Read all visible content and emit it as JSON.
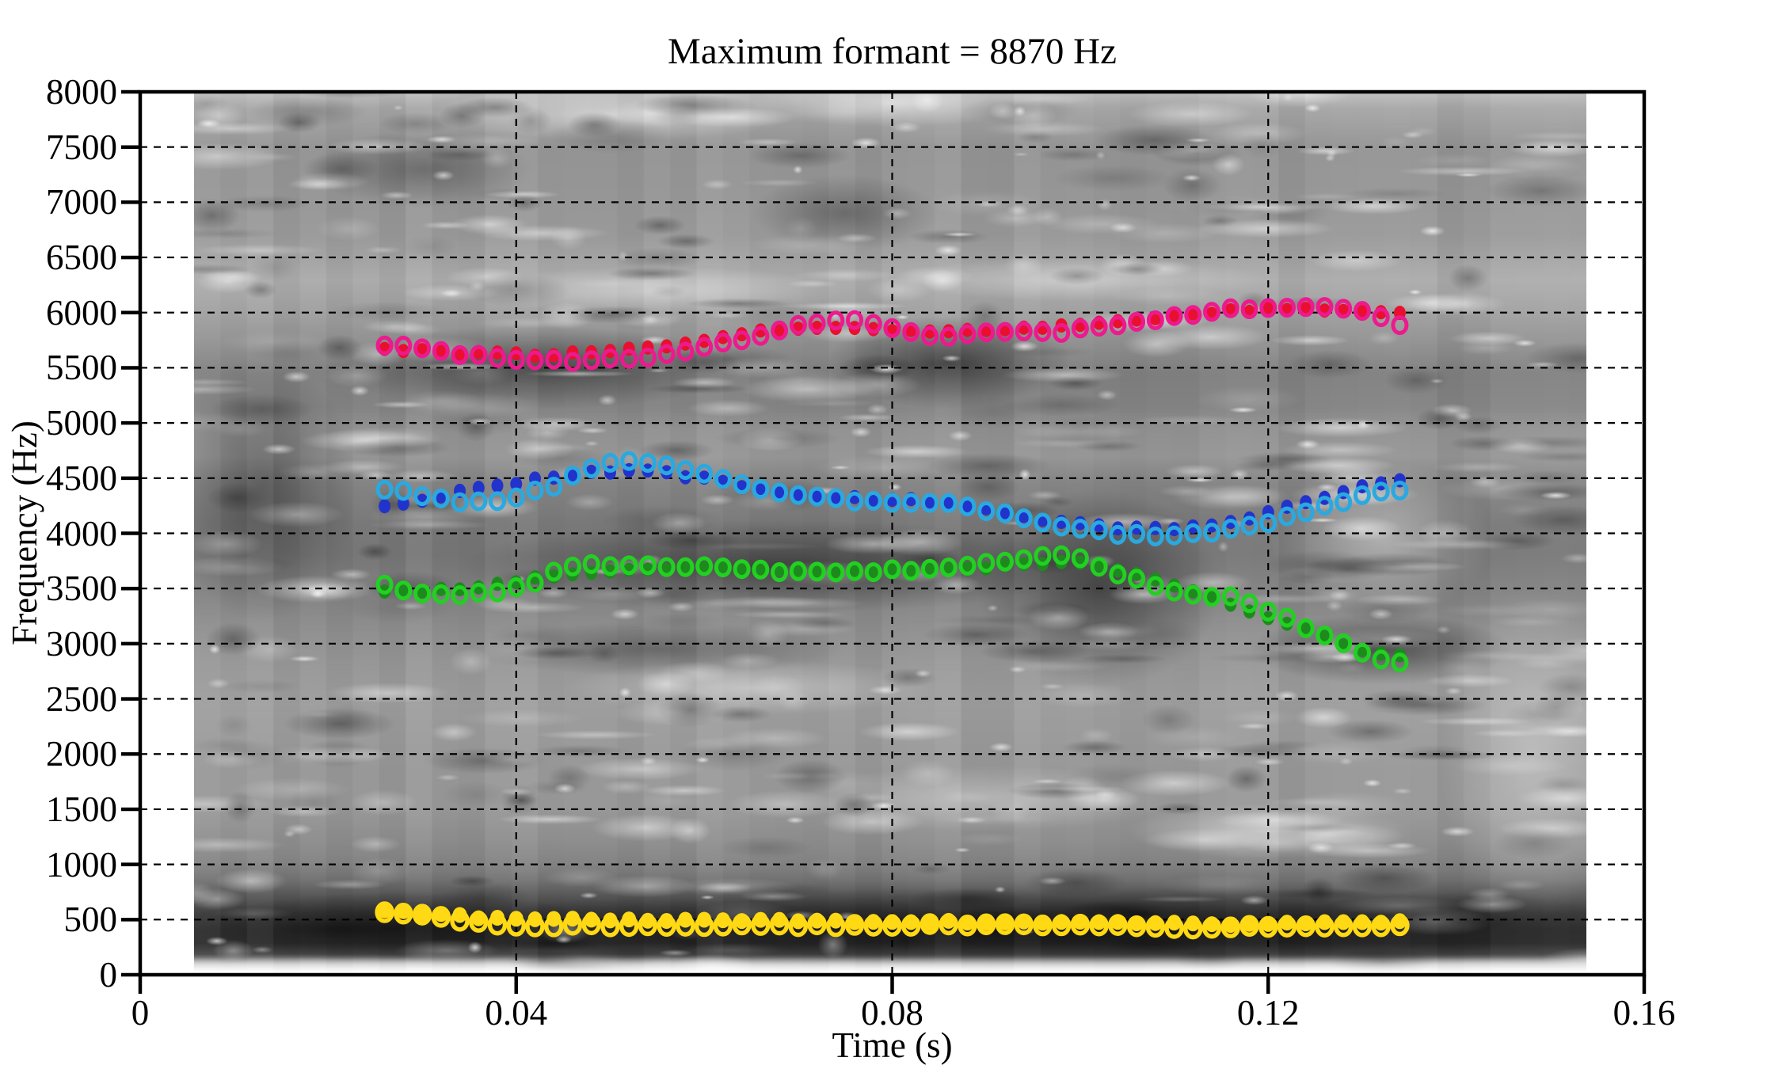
{
  "title": "Maximum formant = 8870 Hz",
  "chart_data": {
    "type": "scatter",
    "title": "Maximum formant = 8870 Hz",
    "xlabel": "Time (s)",
    "ylabel": "Frequency (Hz)",
    "xlim": [
      0,
      0.16
    ],
    "ylim": [
      0,
      8000
    ],
    "x_ticks": [
      0,
      0.04,
      0.08,
      0.12,
      0.16
    ],
    "x_tick_labels": [
      "0",
      "0.04",
      "0.08",
      "0.12",
      "0.16"
    ],
    "y_ticks": [
      0,
      500,
      1000,
      1500,
      2000,
      2500,
      3000,
      3500,
      4000,
      4500,
      5000,
      5500,
      6000,
      6500,
      7000,
      7500,
      8000
    ],
    "y_tick_labels": [
      "0",
      "500",
      "1000",
      "1500",
      "2000",
      "2500",
      "3000",
      "3500",
      "4000",
      "4500",
      "5000",
      "5500",
      "6000",
      "6500",
      "7000",
      "7500",
      "8000"
    ],
    "grid": {
      "style": "dashed",
      "h_step_hz": 500,
      "v_step_s": 0.04,
      "color": "#000000"
    },
    "legend": "none",
    "background": {
      "kind": "grayscale-spectrogram",
      "time_range_s": [
        0.0057,
        0.1539
      ],
      "freq_range_hz": [
        0,
        8000
      ]
    },
    "formant_tracks": {
      "time_start_s": 0.026,
      "time_step_s": 0.002,
      "time_end_s": 0.134,
      "series": [
        {
          "id": "red-filled-dots",
          "label": "Formant ~5600-6000 Hz (filled dots)",
          "marker": "filled-dot",
          "color": "#e8102e",
          "keypoints": [
            [
              0.026,
              5672
            ],
            [
              0.03,
              5655
            ],
            [
              0.034,
              5640
            ],
            [
              0.038,
              5628
            ],
            [
              0.042,
              5620
            ],
            [
              0.046,
              5628
            ],
            [
              0.05,
              5652
            ],
            [
              0.056,
              5705
            ],
            [
              0.062,
              5780
            ],
            [
              0.068,
              5845
            ],
            [
              0.072,
              5868
            ],
            [
              0.076,
              5868
            ],
            [
              0.08,
              5845
            ],
            [
              0.084,
              5828
            ],
            [
              0.088,
              5840
            ],
            [
              0.092,
              5855
            ],
            [
              0.096,
              5868
            ],
            [
              0.1,
              5890
            ],
            [
              0.104,
              5920
            ],
            [
              0.108,
              5958
            ],
            [
              0.112,
              5990
            ],
            [
              0.116,
              6010
            ],
            [
              0.12,
              6020
            ],
            [
              0.124,
              6025
            ],
            [
              0.128,
              6018
            ],
            [
              0.131,
              6005
            ],
            [
              0.134,
              5988
            ]
          ]
        },
        {
          "id": "magenta-open-circles",
          "label": "Formant ~5600-6050 Hz (open circles)",
          "marker": "open-circle",
          "color": "#ec1a8e",
          "keypoints": [
            [
              0.026,
              5712
            ],
            [
              0.03,
              5668
            ],
            [
              0.034,
              5625
            ],
            [
              0.038,
              5590
            ],
            [
              0.042,
              5568
            ],
            [
              0.046,
              5560
            ],
            [
              0.05,
              5572
            ],
            [
              0.056,
              5625
            ],
            [
              0.062,
              5725
            ],
            [
              0.068,
              5838
            ],
            [
              0.072,
              5912
            ],
            [
              0.076,
              5925
            ],
            [
              0.08,
              5868
            ],
            [
              0.084,
              5795
            ],
            [
              0.088,
              5802
            ],
            [
              0.092,
              5830
            ],
            [
              0.096,
              5812
            ],
            [
              0.1,
              5850
            ],
            [
              0.104,
              5882
            ],
            [
              0.108,
              5940
            ],
            [
              0.112,
              5978
            ],
            [
              0.116,
              6028
            ],
            [
              0.12,
              6050
            ],
            [
              0.124,
              6058
            ],
            [
              0.128,
              6035
            ],
            [
              0.131,
              5985
            ],
            [
              0.134,
              5892
            ]
          ]
        },
        {
          "id": "blue-filled-dots",
          "label": "Formant ~4050-4560 Hz (filled dots)",
          "marker": "filled-dot",
          "color": "#2233cc",
          "keypoints": [
            [
              0.026,
              4258
            ],
            [
              0.03,
              4300
            ],
            [
              0.034,
              4378
            ],
            [
              0.038,
              4432
            ],
            [
              0.044,
              4512
            ],
            [
              0.048,
              4545
            ],
            [
              0.053,
              4560
            ],
            [
              0.058,
              4520
            ],
            [
              0.063,
              4442
            ],
            [
              0.068,
              4372
            ],
            [
              0.073,
              4330
            ],
            [
              0.078,
              4318
            ],
            [
              0.083,
              4298
            ],
            [
              0.088,
              4250
            ],
            [
              0.093,
              4180
            ],
            [
              0.098,
              4102
            ],
            [
              0.103,
              4058
            ],
            [
              0.108,
              4040
            ],
            [
              0.113,
              4062
            ],
            [
              0.118,
              4140
            ],
            [
              0.123,
              4252
            ],
            [
              0.128,
              4372
            ],
            [
              0.131,
              4432
            ],
            [
              0.134,
              4472
            ]
          ]
        },
        {
          "id": "cyan-open-circles",
          "label": "Formant ~3980-4650 Hz (open circles)",
          "marker": "open-circle",
          "color": "#29a9e0",
          "keypoints": [
            [
              0.026,
              4408
            ],
            [
              0.03,
              4338
            ],
            [
              0.034,
              4288
            ],
            [
              0.038,
              4298
            ],
            [
              0.044,
              4432
            ],
            [
              0.048,
              4598
            ],
            [
              0.051,
              4648
            ],
            [
              0.055,
              4638
            ],
            [
              0.06,
              4540
            ],
            [
              0.065,
              4428
            ],
            [
              0.07,
              4352
            ],
            [
              0.075,
              4300
            ],
            [
              0.08,
              4288
            ],
            [
              0.085,
              4278
            ],
            [
              0.09,
              4210
            ],
            [
              0.095,
              4120
            ],
            [
              0.1,
              4042
            ],
            [
              0.105,
              3990
            ],
            [
              0.11,
              3978
            ],
            [
              0.115,
              4018
            ],
            [
              0.12,
              4098
            ],
            [
              0.125,
              4220
            ],
            [
              0.13,
              4338
            ],
            [
              0.134,
              4398
            ]
          ]
        },
        {
          "id": "darkgreen-filled-dots",
          "label": "Formant ~2900-3750 Hz (filled dots)",
          "marker": "filled-dot",
          "color": "#1e8a1e",
          "keypoints": [
            [
              0.026,
              3478
            ],
            [
              0.03,
              3482
            ],
            [
              0.034,
              3497
            ],
            [
              0.04,
              3568
            ],
            [
              0.046,
              3640
            ],
            [
              0.052,
              3668
            ],
            [
              0.058,
              3680
            ],
            [
              0.064,
              3674
            ],
            [
              0.072,
              3660
            ],
            [
              0.08,
              3655
            ],
            [
              0.088,
              3680
            ],
            [
              0.096,
              3732
            ],
            [
              0.1,
              3745
            ],
            [
              0.104,
              3660
            ],
            [
              0.108,
              3578
            ],
            [
              0.112,
              3482
            ],
            [
              0.116,
              3360
            ],
            [
              0.12,
              3240
            ],
            [
              0.124,
              3120
            ],
            [
              0.128,
              2992
            ],
            [
              0.131,
              2925
            ],
            [
              0.134,
              2895
            ]
          ]
        },
        {
          "id": "green-open-circles",
          "label": "Formant ~2820-3790 Hz (open circles)",
          "marker": "open-circle",
          "color": "#22d022",
          "keypoints": [
            [
              0.026,
              3540
            ],
            [
              0.03,
              3448
            ],
            [
              0.034,
              3448
            ],
            [
              0.04,
              3505
            ],
            [
              0.046,
              3698
            ],
            [
              0.052,
              3710
            ],
            [
              0.058,
              3700
            ],
            [
              0.064,
              3672
            ],
            [
              0.072,
              3650
            ],
            [
              0.08,
              3662
            ],
            [
              0.088,
              3702
            ],
            [
              0.096,
              3788
            ],
            [
              0.1,
              3768
            ],
            [
              0.104,
              3638
            ],
            [
              0.108,
              3520
            ],
            [
              0.112,
              3436
            ],
            [
              0.116,
              3418
            ],
            [
              0.12,
              3298
            ],
            [
              0.124,
              3148
            ],
            [
              0.128,
              2998
            ],
            [
              0.131,
              2880
            ],
            [
              0.134,
              2822
            ]
          ]
        },
        {
          "id": "yellow-filled-dots",
          "label": "Formant ~460-575 Hz (filled dots)",
          "marker": "filled-dot",
          "color": "#ffd913",
          "keypoints": [
            [
              0.026,
              575
            ],
            [
              0.028,
              568
            ],
            [
              0.032,
              545
            ],
            [
              0.036,
              522
            ],
            [
              0.04,
              505
            ],
            [
              0.044,
              503
            ],
            [
              0.048,
              500
            ],
            [
              0.054,
              495
            ],
            [
              0.06,
              494
            ],
            [
              0.068,
              490
            ],
            [
              0.076,
              486
            ],
            [
              0.084,
              480
            ],
            [
              0.092,
              480
            ],
            [
              0.1,
              474
            ],
            [
              0.108,
              465
            ],
            [
              0.116,
              460
            ],
            [
              0.124,
              466
            ],
            [
              0.13,
              470
            ],
            [
              0.134,
              476
            ]
          ]
        },
        {
          "id": "yellow-open-circles",
          "label": "Formant ~430-560 Hz (open circles)",
          "marker": "open-circle",
          "color": "#ffd913",
          "keypoints": [
            [
              0.026,
              562
            ],
            [
              0.028,
              550
            ],
            [
              0.032,
              518
            ],
            [
              0.036,
              478
            ],
            [
              0.04,
              452
            ],
            [
              0.044,
              445
            ],
            [
              0.048,
              450
            ],
            [
              0.054,
              440
            ],
            [
              0.06,
              446
            ],
            [
              0.068,
              450
            ],
            [
              0.076,
              445
            ],
            [
              0.084,
              450
            ],
            [
              0.092,
              455
            ],
            [
              0.1,
              450
            ],
            [
              0.108,
              432
            ],
            [
              0.116,
              430
            ],
            [
              0.124,
              446
            ],
            [
              0.13,
              440
            ],
            [
              0.134,
              456
            ]
          ]
        }
      ]
    }
  }
}
